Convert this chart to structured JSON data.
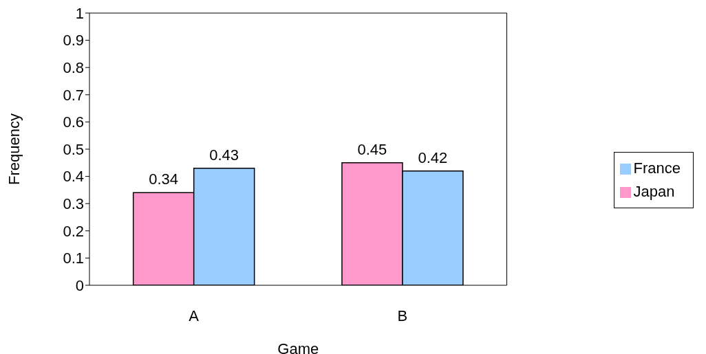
{
  "chart_data": {
    "type": "bar",
    "xlabel": "Game",
    "ylabel": "Frequency",
    "categories": [
      "A",
      "B"
    ],
    "series": [
      {
        "name": "Japan",
        "color": "#ff99cc",
        "values": [
          0.34,
          0.45
        ]
      },
      {
        "name": "France",
        "color": "#99ccff",
        "values": [
          0.43,
          0.42
        ]
      }
    ],
    "ylim": [
      0,
      1
    ],
    "yticks": [
      0,
      0.1,
      0.2,
      0.3,
      0.4,
      0.5,
      0.6,
      0.7,
      0.8,
      0.9,
      1
    ],
    "grid": false,
    "legend": "right",
    "data_labels": true
  }
}
